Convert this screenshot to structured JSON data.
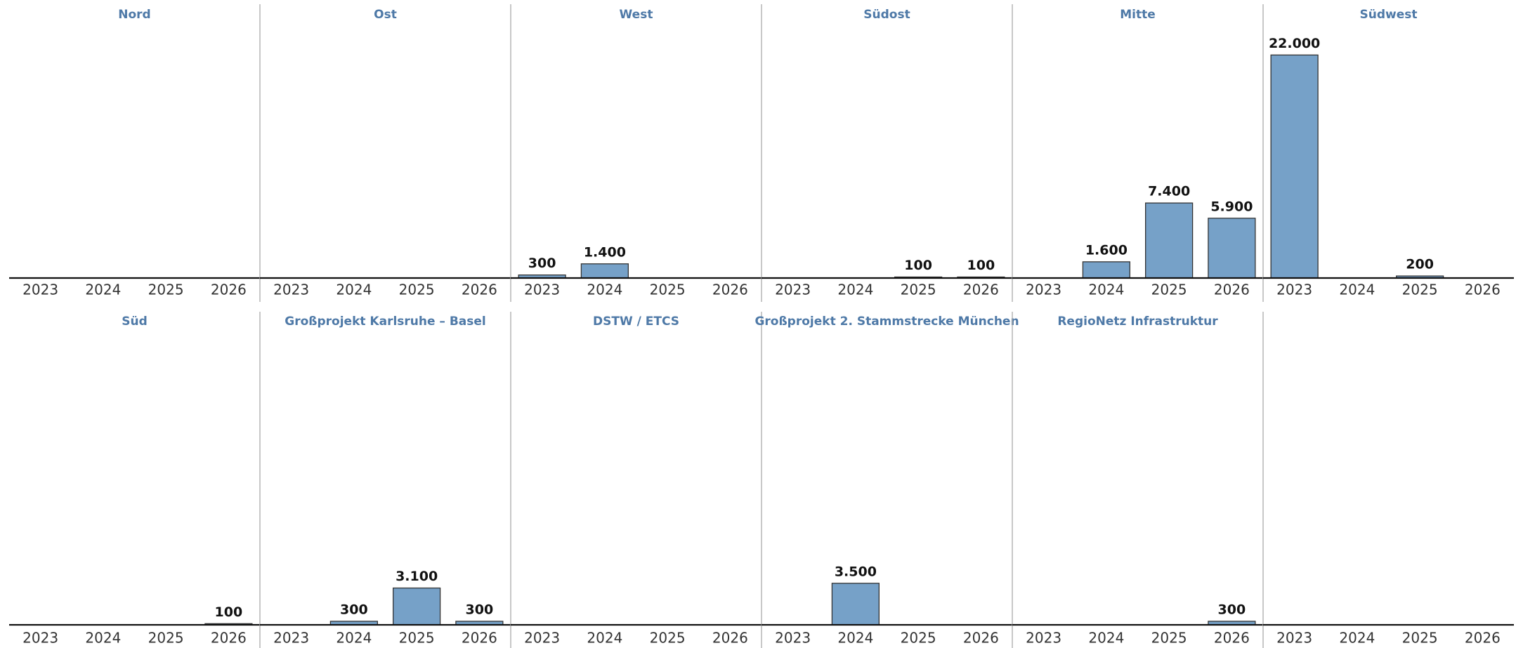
{
  "chart_data": [
    {
      "type": "bar",
      "title": "Nord",
      "categories": [
        "2023",
        "2024",
        "2025",
        "2026"
      ],
      "values": [
        null,
        null,
        null,
        null
      ],
      "value_labels": [
        null,
        null,
        null,
        null
      ],
      "color": "#76a1c8",
      "ylim": [
        0,
        25000
      ]
    },
    {
      "type": "bar",
      "title": "Ost",
      "categories": [
        "2023",
        "2024",
        "2025",
        "2026"
      ],
      "values": [
        null,
        null,
        null,
        null
      ],
      "value_labels": [
        null,
        null,
        null,
        null
      ],
      "color": "#76a1c8",
      "ylim": [
        0,
        25000
      ]
    },
    {
      "type": "bar",
      "title": "West",
      "categories": [
        "2023",
        "2024",
        "2025",
        "2026"
      ],
      "values": [
        300,
        1400,
        null,
        null
      ],
      "value_labels": [
        "300",
        "1.400",
        null,
        null
      ],
      "color": "#76a1c8",
      "ylim": [
        0,
        25000
      ]
    },
    {
      "type": "bar",
      "title": "Südost",
      "categories": [
        "2023",
        "2024",
        "2025",
        "2026"
      ],
      "values": [
        null,
        null,
        100,
        100
      ],
      "value_labels": [
        null,
        null,
        "100",
        "100"
      ],
      "color": "#76a1c8",
      "ylim": [
        0,
        25000
      ]
    },
    {
      "type": "bar",
      "title": "Mitte",
      "categories": [
        "2023",
        "2024",
        "2025",
        "2026"
      ],
      "values": [
        null,
        1600,
        7400,
        5900
      ],
      "value_labels": [
        null,
        "1.600",
        "7.400",
        "5.900"
      ],
      "color": "#76a1c8",
      "ylim": [
        0,
        25000
      ]
    },
    {
      "type": "bar",
      "title": "Südwest",
      "categories": [
        "2023",
        "2024",
        "2025",
        "2026"
      ],
      "values": [
        22000,
        null,
        200,
        null
      ],
      "value_labels": [
        "22.000",
        null,
        "200",
        null
      ],
      "color": "#76a1c8",
      "ylim": [
        0,
        25000
      ]
    },
    {
      "type": "bar",
      "title": "Süd",
      "categories": [
        "2023",
        "2024",
        "2025",
        "2026"
      ],
      "values": [
        null,
        null,
        null,
        100
      ],
      "value_labels": [
        null,
        null,
        null,
        "100"
      ],
      "color": "#76a1c8",
      "ylim": [
        0,
        25000
      ]
    },
    {
      "type": "bar",
      "title": "Großprojekt Karlsruhe – Basel",
      "categories": [
        "2023",
        "2024",
        "2025",
        "2026"
      ],
      "values": [
        null,
        300,
        3100,
        300
      ],
      "value_labels": [
        null,
        "300",
        "3.100",
        "300"
      ],
      "color": "#76a1c8",
      "ylim": [
        0,
        25000
      ]
    },
    {
      "type": "bar",
      "title": "DSTW / ETCS",
      "categories": [
        "2023",
        "2024",
        "2025",
        "2026"
      ],
      "values": [
        null,
        null,
        null,
        null
      ],
      "value_labels": [
        null,
        null,
        null,
        null
      ],
      "color": "#76a1c8",
      "ylim": [
        0,
        25000
      ]
    },
    {
      "type": "bar",
      "title": "Großprojekt 2. Stammstrecke München",
      "categories": [
        "2023",
        "2024",
        "2025",
        "2026"
      ],
      "values": [
        null,
        3500,
        null,
        null
      ],
      "value_labels": [
        null,
        "3.500",
        null,
        null
      ],
      "color": "#76a1c8",
      "ylim": [
        0,
        25000
      ]
    },
    {
      "type": "bar",
      "title": "RegioNetz Infrastruktur",
      "categories": [
        "2023",
        "2024",
        "2025",
        "2026"
      ],
      "values": [
        null,
        null,
        null,
        300
      ],
      "value_labels": [
        null,
        null,
        null,
        "300"
      ],
      "color": "#76a1c8",
      "ylim": [
        0,
        25000
      ]
    },
    {
      "type": "bar",
      "categories": [
        "2023",
        "2024",
        "2025",
        "2026"
      ],
      "values": [
        null,
        null,
        null,
        null
      ],
      "value_labels": [
        null,
        null,
        null,
        null
      ],
      "color": "#76a1c8",
      "ylim": [
        0,
        25000
      ]
    }
  ]
}
